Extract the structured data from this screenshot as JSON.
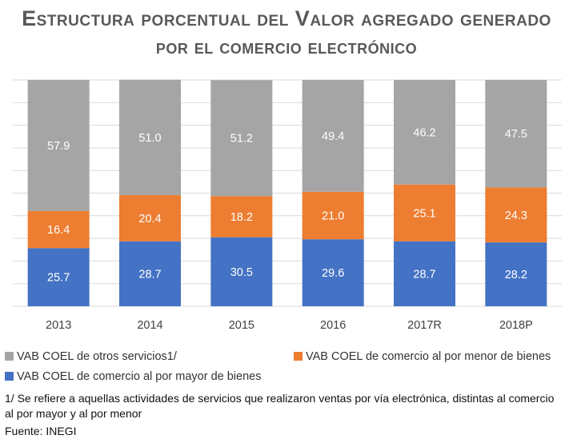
{
  "title_line1": "Estructura porcentual del Valor agregado generado",
  "title_line2": "por el comercio electrónico",
  "chart_data": {
    "type": "bar",
    "stacked": true,
    "categories": [
      "2013",
      "2014",
      "2015",
      "2016",
      "2017R",
      "2018P"
    ],
    "series": [
      {
        "name": "VAB COEL de comercio al por mayor de bienes",
        "color": "#4472c4",
        "values": [
          25.7,
          28.7,
          30.5,
          29.6,
          28.7,
          28.2
        ]
      },
      {
        "name": "VAB COEL de comercio al por menor de bienes",
        "color": "#ed7d31",
        "values": [
          16.4,
          20.4,
          18.2,
          21.0,
          25.1,
          24.3
        ]
      },
      {
        "name": "VAB COEL de otros servicios1/",
        "color": "#a5a5a5",
        "values": [
          57.9,
          51.0,
          51.2,
          49.4,
          46.2,
          47.5
        ]
      }
    ],
    "data_labels": [
      [
        "25.7",
        "28.7",
        "30.5",
        "29.6",
        "28.7",
        "28.2"
      ],
      [
        "16.4",
        "20.4",
        "18.2",
        "21.0",
        "25.1",
        "24.3"
      ],
      [
        "57.9",
        "51.0",
        "51.2",
        "49.4",
        "46.2",
        "47.5"
      ]
    ],
    "ylim": [
      0,
      100
    ],
    "grid": true,
    "legend_position": "bottom"
  },
  "legend": {
    "otros": "VAB COEL de otros servicios1/",
    "menor": "VAB COEL de comercio al por menor de bienes",
    "mayor": "VAB COEL de comercio al por mayor de bienes"
  },
  "footnote": "1/ Se refiere a aquellas actividades de servicios que realizaron ventas por vía electrónica, distintas al comercio al por mayor y al por menor",
  "source": "Fuente: INEGI"
}
